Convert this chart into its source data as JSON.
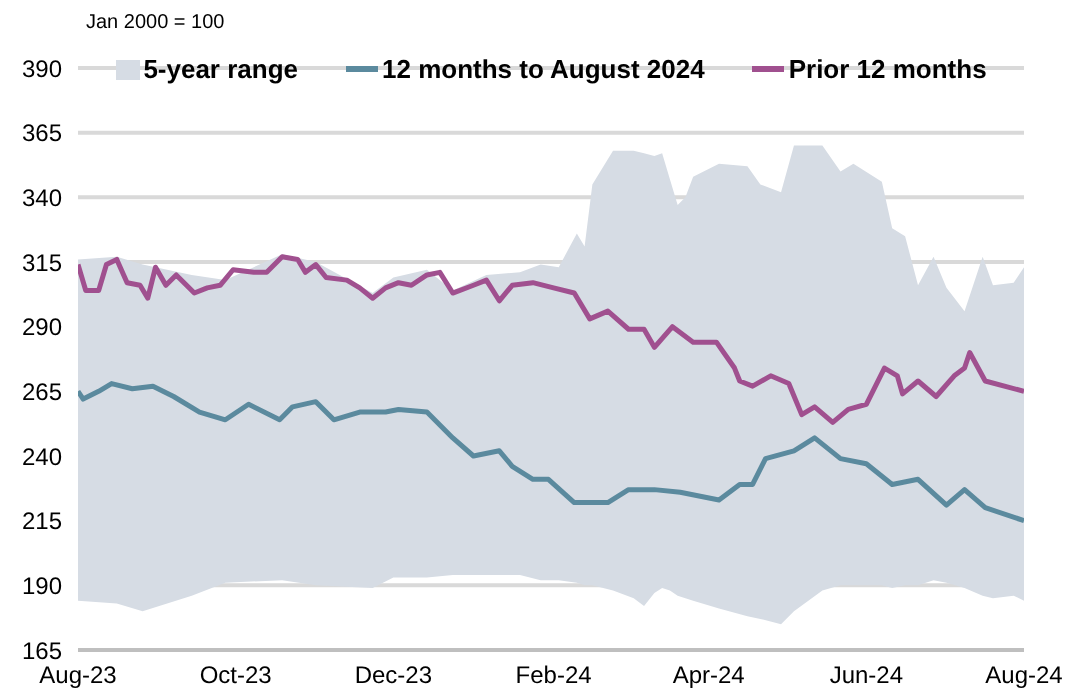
{
  "chart_data": {
    "type": "line",
    "annotations": [
      "Jan 2000 = 100"
    ],
    "xlim": [
      "2023-08-01",
      "2024-08-01"
    ],
    "xticks": [
      {
        "value": "2023-08-01",
        "label": "Aug-23"
      },
      {
        "value": "2023-10-01",
        "label": "Oct-23"
      },
      {
        "value": "2023-12-01",
        "label": "Dec-23"
      },
      {
        "value": "2024-02-01",
        "label": "Feb-24"
      },
      {
        "value": "2024-04-01",
        "label": "Apr-24"
      },
      {
        "value": "2024-06-01",
        "label": "Jun-24"
      },
      {
        "value": "2024-08-01",
        "label": "Aug-24"
      }
    ],
    "ylim": [
      165,
      390
    ],
    "yticks": [
      165,
      190,
      215,
      240,
      265,
      290,
      315,
      340,
      365,
      390
    ],
    "grid": "y",
    "legend": "top",
    "marker": "none",
    "line_style": "solid",
    "series": [
      {
        "name": "5-year range",
        "type": "area",
        "color": "#d6dce4",
        "x": [
          "2023-08-01",
          "2023-08-16",
          "2023-08-26",
          "2023-09-14",
          "2023-09-27",
          "2023-10-19",
          "2023-11-01",
          "2023-11-23",
          "2023-12-01",
          "2023-12-14",
          "2023-12-24",
          "2024-01-06",
          "2024-01-19",
          "2024-01-27",
          "2024-02-03",
          "2024-02-10",
          "2024-02-13",
          "2024-02-16",
          "2024-02-24",
          "2024-03-03",
          "2024-03-07",
          "2024-03-11",
          "2024-03-14",
          "2024-03-17",
          "2024-03-20",
          "2024-03-23",
          "2024-03-26",
          "2024-04-05",
          "2024-04-16",
          "2024-04-21",
          "2024-04-29",
          "2024-05-04",
          "2024-05-15",
          "2024-05-22",
          "2024-05-27",
          "2024-06-07",
          "2024-06-11",
          "2024-06-16",
          "2024-06-21",
          "2024-06-27",
          "2024-07-02",
          "2024-07-09",
          "2024-07-16",
          "2024-07-20",
          "2024-07-28",
          "2024-08-01"
        ],
        "lower": [
          184,
          183,
          180,
          186,
          191,
          192,
          190,
          189,
          193,
          193,
          194,
          194,
          194,
          192,
          192,
          191,
          190,
          190,
          188,
          185,
          182,
          187,
          189,
          188,
          186,
          185,
          184,
          181,
          178,
          177,
          175,
          180,
          188,
          190,
          190,
          190,
          189,
          190,
          190,
          192,
          191,
          189,
          186,
          185,
          186,
          184
        ],
        "values": [
          null,
          null,
          null,
          null,
          null,
          null,
          null,
          null,
          null,
          null,
          null,
          null,
          null,
          null,
          null,
          null,
          null,
          null,
          null,
          null,
          null,
          null,
          null,
          null,
          null,
          null,
          null,
          null,
          null,
          null,
          null,
          null,
          null,
          null,
          null,
          null,
          null,
          null,
          null,
          null,
          null,
          null,
          null,
          null,
          null,
          null
        ],
        "upper": [
          316,
          317,
          314,
          310,
          308,
          318,
          315,
          303,
          309,
          312,
          304,
          310,
          311,
          314,
          313,
          326,
          321,
          345,
          358,
          358,
          357,
          356,
          357,
          347,
          337,
          340,
          348,
          353,
          352,
          345,
          342,
          360,
          360,
          350,
          353,
          346,
          328,
          325,
          306,
          317,
          305,
          296,
          317,
          306,
          307,
          313
        ]
      },
      {
        "name": "12 months to August 2024",
        "color": "#5b8a9e",
        "x": [
          "2023-08-01",
          "2023-08-03",
          "2023-08-09",
          "2023-08-14",
          "2023-08-22",
          "2023-08-30",
          "2023-09-07",
          "2023-09-17",
          "2023-09-27",
          "2023-10-06",
          "2023-10-18",
          "2023-10-23",
          "2023-11-01",
          "2023-11-08",
          "2023-11-18",
          "2023-11-28",
          "2023-12-03",
          "2023-12-14",
          "2023-12-24",
          "2024-01-01",
          "2024-01-11",
          "2024-01-16",
          "2024-01-24",
          "2024-01-30",
          "2024-02-09",
          "2024-02-22",
          "2024-03-01",
          "2024-03-11",
          "2024-03-21",
          "2024-04-05",
          "2024-04-13",
          "2024-04-18",
          "2024-04-23",
          "2024-05-04",
          "2024-05-12",
          "2024-05-22",
          "2024-06-01",
          "2024-06-11",
          "2024-06-21",
          "2024-07-02",
          "2024-07-09",
          "2024-07-17",
          "2024-08-01"
        ],
        "values": [
          265,
          262,
          265,
          268,
          266,
          267,
          263,
          257,
          254,
          260,
          254,
          259,
          261,
          254,
          257,
          257,
          258,
          257,
          247,
          240,
          242,
          236,
          231,
          231,
          222,
          222,
          227,
          227,
          226,
          223,
          229,
          229,
          239,
          242,
          247,
          239,
          237,
          229,
          231,
          221,
          227,
          220,
          215
        ]
      },
      {
        "name": "Prior 12 months",
        "color": "#a0508f",
        "x": [
          "2023-08-01",
          "2023-08-04",
          "2023-08-09",
          "2023-08-12",
          "2023-08-16",
          "2023-08-20",
          "2023-08-25",
          "2023-08-28",
          "2023-08-31",
          "2023-09-04",
          "2023-09-08",
          "2023-09-15",
          "2023-09-20",
          "2023-09-25",
          "2023-09-30",
          "2023-10-08",
          "2023-10-13",
          "2023-10-19",
          "2023-10-25",
          "2023-10-28",
          "2023-11-01",
          "2023-11-05",
          "2023-11-13",
          "2023-11-18",
          "2023-11-23",
          "2023-11-28",
          "2023-12-03",
          "2023-12-08",
          "2023-12-14",
          "2023-12-19",
          "2023-12-24",
          "2024-01-01",
          "2024-01-06",
          "2024-01-11",
          "2024-01-16",
          "2024-01-24",
          "2024-02-01",
          "2024-02-09",
          "2024-02-15",
          "2024-02-22",
          "2024-03-01",
          "2024-03-07",
          "2024-03-11",
          "2024-03-18",
          "2024-03-26",
          "2024-04-04",
          "2024-04-11",
          "2024-04-13",
          "2024-04-18",
          "2024-04-25",
          "2024-05-02",
          "2024-05-07",
          "2024-05-12",
          "2024-05-19",
          "2024-05-25",
          "2024-06-01",
          "2024-06-08",
          "2024-06-13",
          "2024-06-15",
          "2024-06-21",
          "2024-06-28",
          "2024-07-05",
          "2024-07-09",
          "2024-07-11",
          "2024-07-17",
          "2024-08-01"
        ],
        "values": [
          314,
          304,
          304,
          314,
          316,
          307,
          306,
          301,
          313,
          306,
          310,
          303,
          305,
          306,
          312,
          311,
          311,
          317,
          316,
          311,
          314,
          309,
          308,
          305,
          301,
          305,
          307,
          306,
          310,
          311,
          303,
          306,
          308,
          300,
          306,
          307,
          305,
          303,
          293,
          296,
          289,
          289,
          282,
          290,
          284,
          284,
          274,
          269,
          267,
          271,
          268,
          256,
          259,
          253,
          258,
          260,
          274,
          271,
          264,
          269,
          263,
          271,
          274,
          280,
          269,
          265
        ]
      }
    ]
  }
}
